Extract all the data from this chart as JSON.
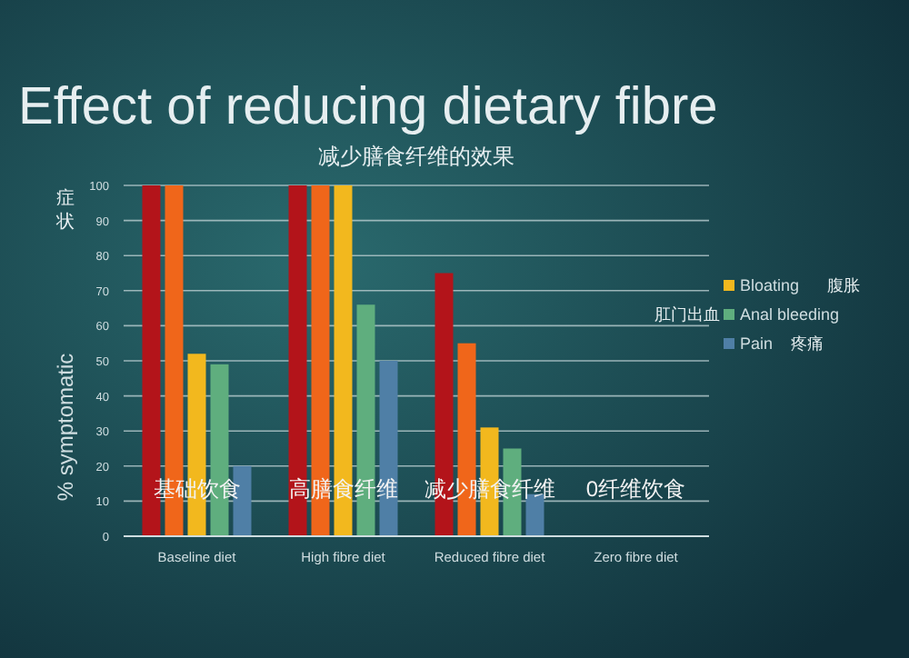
{
  "chart_data": {
    "type": "bar",
    "title": "Effect of reducing dietary fibre",
    "subtitle": "减少膳食纤维的效果",
    "ylabel": "% symptomatic",
    "categories": [
      "Baseline diet",
      "High fibre diet",
      "Reduced fibre diet",
      "Zero fibre diet"
    ],
    "series": [
      {
        "color": "#b3141a",
        "values": [
          100,
          100,
          75,
          0
        ]
      },
      {
        "color": "#f0661a",
        "values": [
          100,
          100,
          55,
          0
        ]
      },
      {
        "name": "Bloating",
        "color": "#f2b81e",
        "values": [
          52,
          100,
          31,
          0
        ]
      },
      {
        "name": "Anal bleeding",
        "color": "#5fae7e",
        "values": [
          49,
          66,
          25,
          0
        ]
      },
      {
        "name": "Pain",
        "color": "#4f7fa6",
        "values": [
          20,
          50,
          12,
          0
        ]
      }
    ],
    "ylim": [
      0,
      100
    ],
    "yticks": [
      0,
      10,
      20,
      30,
      40,
      50,
      60,
      70,
      80,
      90,
      100
    ],
    "grid": "y",
    "legend": "right",
    "annotations": [
      "症状",
      "腹胀",
      "肛门出血",
      "疼痛",
      "基础饮食",
      "高膳食纤维",
      "减少膳食纤维",
      "0纤维饮食"
    ]
  }
}
